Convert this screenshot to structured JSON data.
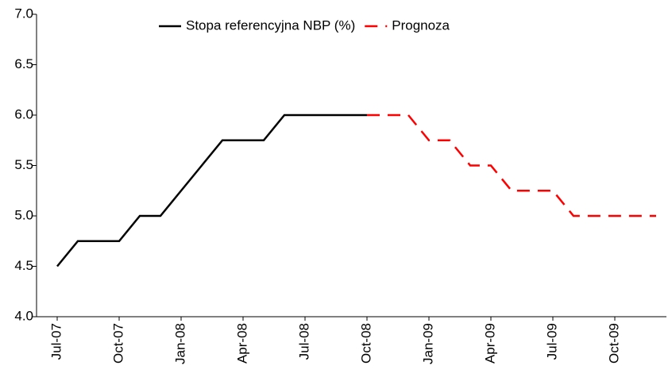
{
  "chart_data": {
    "type": "line",
    "categories": [
      "Jul-07",
      null,
      null,
      "Oct-07",
      null,
      null,
      "Jan-08",
      null,
      null,
      "Apr-08",
      null,
      null,
      "Jul-08",
      null,
      null,
      "Oct-08",
      null,
      null,
      "Jan-09",
      null,
      null,
      "Apr-09",
      null,
      null,
      "Jul-09",
      null,
      null,
      "Oct-09",
      null,
      null
    ],
    "series": [
      {
        "name": "Stopa referencyjna NBP (%)",
        "color": "#000000",
        "dash": false,
        "values": [
          4.5,
          4.75,
          4.75,
          4.75,
          5.0,
          5.0,
          5.25,
          5.5,
          5.75,
          5.75,
          5.75,
          6.0,
          6.0,
          6.0,
          6.0,
          6.0,
          null,
          null,
          null,
          null,
          null,
          null,
          null,
          null,
          null,
          null,
          null,
          null,
          null,
          null
        ]
      },
      {
        "name": "Prognoza",
        "color": "#ff0000",
        "dash": true,
        "values": [
          null,
          null,
          null,
          null,
          null,
          null,
          null,
          null,
          null,
          null,
          null,
          null,
          null,
          null,
          null,
          6.0,
          6.0,
          6.0,
          5.75,
          5.75,
          5.5,
          5.5,
          5.25,
          5.25,
          5.25,
          5.0,
          5.0,
          5.0,
          5.0,
          5.0
        ]
      }
    ],
    "ylim": [
      4.0,
      7.0
    ],
    "yticks": [
      {
        "value": 4.0,
        "label": "4.0"
      },
      {
        "value": 4.5,
        "label": "4.5"
      },
      {
        "value": 5.0,
        "label": "5.0"
      },
      {
        "value": 5.5,
        "label": "5.5"
      },
      {
        "value": 6.0,
        "label": "6.0"
      },
      {
        "value": 6.5,
        "label": "6.5"
      },
      {
        "value": 7.0,
        "label": "7.0"
      }
    ],
    "legend": "top"
  }
}
